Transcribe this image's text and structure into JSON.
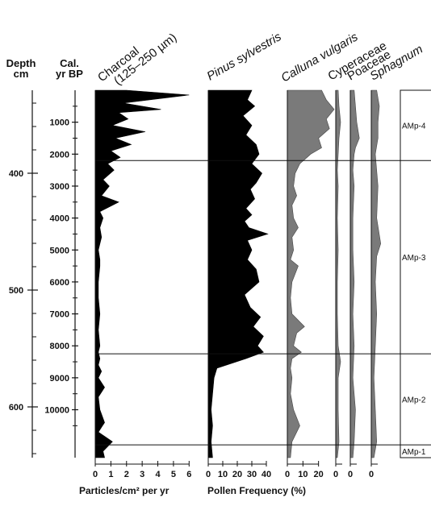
{
  "header_fragment": "",
  "left_axes": {
    "depth_label_1": "Depth",
    "depth_label_2": "cm",
    "age_label_1": "Cal.",
    "age_label_2": "yr BP",
    "depth_ticks": [
      400,
      500,
      600
    ],
    "age_ticks": [
      1000,
      2000,
      3000,
      4000,
      5000,
      6000,
      7000,
      8000,
      9000,
      10000
    ]
  },
  "column_titles": {
    "charcoal_1": "Charcoal",
    "charcoal_2": "(125–250 µm)",
    "pinus": "Pinus sylvestris",
    "calluna": "Calluna vulgaris",
    "cyperaceae": "Cyperaceae",
    "poaceae": "Poaceae",
    "sphagnum": "Sphagnum"
  },
  "bottom_labels": {
    "charcoal_axis": "Particles/cm² per yr",
    "pollen_axis": "Pollen Frequency (%)"
  },
  "chart_data": {
    "type": "area",
    "y_axis": {
      "name": "Cal. yr BP",
      "range": [
        0,
        11500
      ],
      "ticks": [
        1000,
        2000,
        3000,
        4000,
        5000,
        6000,
        7000,
        8000,
        9000,
        10000
      ]
    },
    "depth_axis": {
      "name": "Depth cm",
      "ticks": [
        400,
        500,
        600
      ]
    },
    "zones": [
      {
        "label": "AMp-4",
        "from": 0,
        "to": 2200
      },
      {
        "label": "AMp-3",
        "from": 2200,
        "to": 8250
      },
      {
        "label": "AMp-2",
        "from": 8250,
        "to": 11100
      },
      {
        "label": "AMp-1",
        "from": 11100,
        "to": 11500
      }
    ],
    "series": [
      {
        "name": "Charcoal",
        "xlim": [
          0,
          6.5
        ],
        "xticks": [
          0,
          1,
          2,
          3,
          4,
          5,
          6
        ],
        "age": [
          0,
          150,
          400,
          600,
          700,
          900,
          1100,
          1300,
          1500,
          1700,
          1900,
          2100,
          2300,
          2500,
          2800,
          3000,
          3300,
          3500,
          3800,
          4000,
          4300,
          4600,
          5000,
          5300,
          5500,
          6000,
          6500,
          7000,
          7500,
          8000,
          8200,
          8400,
          8600,
          8800,
          9000,
          9300,
          9600,
          10000,
          10400,
          10700,
          11000,
          11300,
          11500
        ],
        "values": [
          2.0,
          6.0,
          1.8,
          4.2,
          1.5,
          2.1,
          1.1,
          3.2,
          1.3,
          2.3,
          1.0,
          1.6,
          0.8,
          1.2,
          0.5,
          0.9,
          0.4,
          1.5,
          0.3,
          0.5,
          0.3,
          0.4,
          0.2,
          0.3,
          0.3,
          0.2,
          0.2,
          0.3,
          0.2,
          0.3,
          0.2,
          0.3,
          0.2,
          0.4,
          0.2,
          0.6,
          0.2,
          0.3,
          0.6,
          0.2,
          1.1,
          0.5,
          0.6
        ]
      },
      {
        "name": "Pinus sylvestris",
        "xlim": [
          0,
          45
        ],
        "xticks": [
          0,
          10,
          20,
          30,
          40
        ],
        "age": [
          0,
          300,
          500,
          800,
          1100,
          1400,
          1700,
          2000,
          2300,
          2600,
          2900,
          3100,
          3400,
          3700,
          3900,
          4100,
          4300,
          4500,
          4700,
          5000,
          5300,
          5600,
          6000,
          6400,
          6800,
          7100,
          7400,
          7700,
          8000,
          8200,
          8400,
          8700,
          9000,
          9500,
          10000,
          10500,
          11000,
          11500
        ],
        "values": [
          30,
          27,
          32,
          24,
          30,
          26,
          33,
          35,
          30,
          37,
          33,
          29,
          32,
          26,
          30,
          25,
          28,
          41,
          27,
          30,
          27,
          33,
          35,
          25,
          29,
          36,
          31,
          38,
          34,
          38,
          26,
          6,
          4,
          3,
          2,
          3,
          2,
          3
        ]
      },
      {
        "name": "Calluna vulgaris",
        "xlim": [
          0,
          30
        ],
        "xticks": [
          0,
          10,
          20
        ],
        "age": [
          0,
          300,
          600,
          900,
          1200,
          1500,
          1800,
          2000,
          2300,
          2600,
          3000,
          3300,
          3600,
          4000,
          4300,
          4600,
          5000,
          5300,
          5500,
          6000,
          6500,
          7000,
          7400,
          7600,
          8000,
          8200,
          8400,
          8700,
          9000,
          9500,
          10000,
          10500,
          11000,
          11500
        ],
        "values": [
          22,
          25,
          30,
          25,
          27,
          20,
          22,
          15,
          8,
          5,
          4,
          6,
          3,
          4,
          7,
          3,
          4,
          2,
          7,
          3,
          2,
          3,
          11,
          6,
          4,
          9,
          3,
          2,
          3,
          2,
          4,
          8,
          3,
          2
        ]
      },
      {
        "name": "Cyperaceae",
        "xlim": [
          0,
          6
        ],
        "xticks": [
          0
        ],
        "age": [
          0,
          500,
          1000,
          1500,
          2000,
          2500,
          3000,
          4000,
          5000,
          6000,
          7000,
          8000,
          8500,
          9000,
          10000,
          11000,
          11500
        ],
        "values": [
          1.5,
          2.0,
          3.0,
          2.0,
          1.5,
          1.0,
          1.5,
          1.0,
          1.5,
          1.0,
          1.0,
          1.5,
          3.0,
          1.5,
          1.5,
          2.0,
          1.0
        ]
      },
      {
        "name": "Poaceae",
        "xlim": [
          0,
          10
        ],
        "xticks": [
          0
        ],
        "age": [
          0,
          500,
          1000,
          1500,
          1800,
          2000,
          2500,
          3000,
          4000,
          5000,
          6000,
          7000,
          8000,
          9000,
          10000,
          11000,
          11500
        ],
        "values": [
          3,
          4,
          5,
          7,
          4,
          3,
          2,
          3,
          2,
          2,
          3,
          2,
          3,
          2,
          4,
          3,
          2
        ]
      },
      {
        "name": "Sphagnum",
        "xlim": [
          0,
          12
        ],
        "xticks": [
          0
        ],
        "age": [
          0,
          500,
          1000,
          1500,
          2000,
          3000,
          4000,
          4800,
          5200,
          6000,
          7000,
          8000,
          9000,
          10000,
          11000,
          11500
        ],
        "values": [
          4,
          6,
          5,
          5,
          3,
          5,
          4,
          7,
          4,
          3,
          4,
          3,
          2,
          3,
          4,
          2
        ]
      }
    ]
  }
}
